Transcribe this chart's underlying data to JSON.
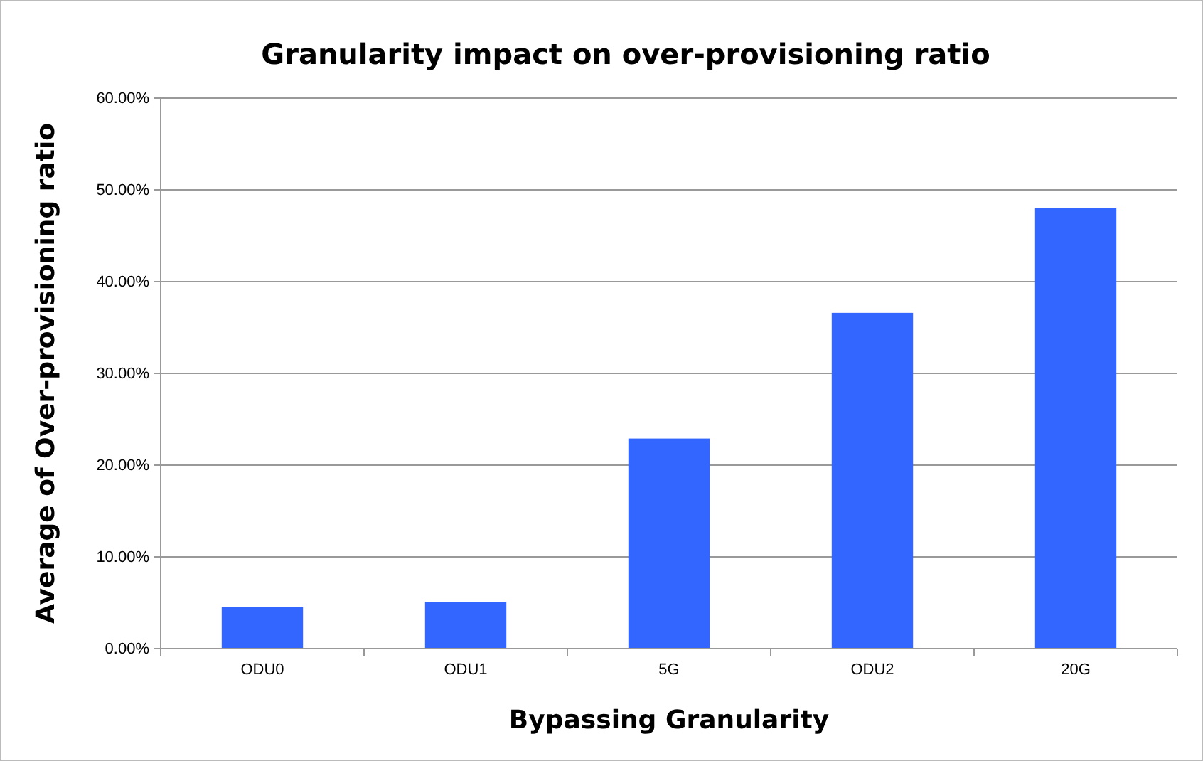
{
  "chart_data": {
    "type": "bar",
    "title": "Granularity impact on over-provisioning ratio",
    "xlabel": "Bypassing Granularity",
    "ylabel": "Average of Over-provisioning ratio",
    "categories": [
      "ODU0",
      "ODU1",
      "5G",
      "ODU2",
      "20G"
    ],
    "values": [
      4.5,
      5.1,
      22.9,
      36.6,
      48.0
    ],
    "color": "#3366ff",
    "ylim": [
      0,
      60
    ],
    "yticks": [
      {
        "value": 0,
        "label": "0.00%"
      },
      {
        "value": 10,
        "label": "10.00%"
      },
      {
        "value": 20,
        "label": "20.00%"
      },
      {
        "value": 30,
        "label": "30.00%"
      },
      {
        "value": 40,
        "label": "40.00%"
      },
      {
        "value": 50,
        "label": "50.00%"
      },
      {
        "value": 60,
        "label": "60.00%"
      }
    ],
    "grid": "y"
  }
}
